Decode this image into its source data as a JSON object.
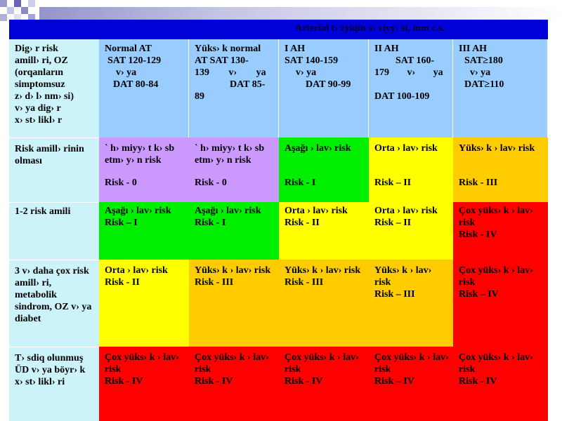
{
  "colors": {
    "title_bar": "#0000d8",
    "header_row": "#99ccff",
    "row_label": "#cdf3fa",
    "lilac": "#cc99ff",
    "low": "#00ee00",
    "medium": "#ffff00",
    "high": "#ffcc00",
    "very_high": "#ff0000"
  },
  "title": "Arterial t› zyiqin s› viyy› si, mm c.s.",
  "header": {
    "first_label": [
      "Dig› r risk",
      "amill› ri, OZ",
      "(orqanların",
      "simptomsuz",
      "z› d› l› nm› si)",
      "v› ya dig› r",
      "x› st› likl› r"
    ],
    "columns": [
      {
        "lines": [
          "Normal AT",
          "SAT 120-129",
          "v› ya",
          "DAT 80-84"
        ]
      },
      {
        "lines": [
          "Yüks› k normal",
          "AT SAT 130-",
          "139 v› ya",
          "DAT 85-",
          "89"
        ]
      },
      {
        "lines": [
          "I AH",
          "SAT 140-159",
          "v› ya",
          "DAT 90-99"
        ]
      },
      {
        "lines": [
          "II AH",
          "SAT 160-",
          "179 v› ya",
          "",
          "DAT 100-109"
        ]
      },
      {
        "lines": [
          "III AH",
          "SAT≥180",
          "v› ya",
          "DAT≥110"
        ]
      }
    ]
  },
  "rows": [
    {
      "label": "Risk amill› rinin olması",
      "cells": [
        {
          "level": "lilac",
          "text": "` h› miyy› t k› sb etm› y› n risk",
          "risk": "Risk - 0"
        },
        {
          "level": "lilac",
          "text": "` h› miyy› t k› sb etm› y› n risk",
          "risk": "Risk - 0"
        },
        {
          "level": "green",
          "text": "Aşağı › lav› risk",
          "risk": "Risk - I"
        },
        {
          "level": "yellow",
          "text": "Orta › lav› risk",
          "risk": "Risk – II"
        },
        {
          "level": "orange",
          "text": "Yüks› k › lav› risk",
          "risk": "Risk - III"
        }
      ]
    },
    {
      "label": "1-2 risk amili",
      "cells": [
        {
          "level": "green",
          "text": "Aşağı › lav› risk",
          "risk": "Risk – I"
        },
        {
          "level": "green",
          "text": "Aşağı › lav› risk",
          "risk": "Risk - I"
        },
        {
          "level": "yellow",
          "text": "Orta › lav› risk",
          "risk": "Risk - II"
        },
        {
          "level": "yellow",
          "text": "Orta › lav› risk",
          "risk": "Risk – II"
        },
        {
          "level": "red",
          "text": "Çox yüks› k › lav› risk",
          "risk": "Risk - IV"
        }
      ]
    },
    {
      "label": "3 v› daha çox risk amill› ri, metabolik sindrom, OZ v› ya diabet",
      "cells": [
        {
          "level": "yellow",
          "text": "Orta › lav› risk",
          "risk": "Risk - II"
        },
        {
          "level": "orange",
          "text": "Yüks› k › lav› risk",
          "risk": "Risk - III"
        },
        {
          "level": "orange",
          "text": "Yüks› k › lav› risk",
          "risk": "Risk - III"
        },
        {
          "level": "orange",
          "text": "Yüks› k › lav› risk",
          "risk": "Risk – III"
        },
        {
          "level": "red",
          "text": "Çox yüks› k › lav› risk",
          "risk": "Risk – IV"
        }
      ]
    },
    {
      "label": "T› sdiq olunmuş ÜD v› ya böyr› k x› st› likl› ri",
      "cells": [
        {
          "level": "red",
          "text": "Çox yüks› k › lav› risk",
          "risk": "Risk - IV"
        },
        {
          "level": "red",
          "text": "Çox yüks› k › lav› risk",
          "risk": "Risk - IV"
        },
        {
          "level": "red",
          "text": "Çox yüks› k › lav› risk",
          "risk": "Risk - IV"
        },
        {
          "level": "red",
          "text": "Çox yüks› k › lav› risk",
          "risk": "Risk – IV"
        },
        {
          "level": "red",
          "text": "Çox yüks› k › lav› risk",
          "risk": "Risk - IV"
        }
      ]
    }
  ]
}
